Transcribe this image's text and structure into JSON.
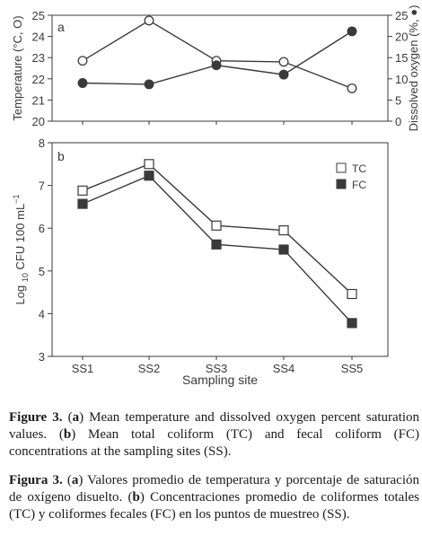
{
  "chart_data": [
    {
      "type": "line",
      "panel_label": "a",
      "categories": [
        "SS1",
        "SS2",
        "SS3",
        "SS4",
        "SS5"
      ],
      "ylabel": "Temperature (°C, O)",
      "y2label": "Dissolved oxygen (%, ●)",
      "ylim": [
        20,
        25
      ],
      "y2lim": [
        0,
        25
      ],
      "yticks": [
        "20",
        "21",
        "22",
        "23",
        "24",
        "25"
      ],
      "y2ticks": [
        "0",
        "5",
        "10",
        "15",
        "20",
        "25"
      ],
      "grid": false,
      "series": [
        {
          "marker": "open-circle",
          "axis": "left",
          "values": [
            22.85,
            24.75,
            22.85,
            22.8,
            21.55
          ]
        },
        {
          "marker": "filled-circle",
          "axis": "right",
          "values": [
            9.0,
            8.7,
            13.2,
            11.0,
            21.2
          ]
        }
      ]
    },
    {
      "type": "line",
      "panel_label": "b",
      "categories": [
        "SS1",
        "SS2",
        "SS3",
        "SS4",
        "SS5"
      ],
      "xlabel": "Sampling site",
      "ylabel": "Log10 CFU 100 mL−1",
      "ylim": [
        3,
        8
      ],
      "yticks": [
        "3",
        "4",
        "5",
        "6",
        "7",
        "8"
      ],
      "grid": false,
      "legend_position": "top-right",
      "series": [
        {
          "name": "TC",
          "marker": "open-square",
          "values": [
            6.88,
            7.5,
            6.06,
            5.95,
            4.46
          ]
        },
        {
          "name": "FC",
          "marker": "filled-square",
          "values": [
            6.57,
            7.23,
            5.62,
            5.5,
            3.78
          ]
        }
      ]
    }
  ],
  "captions": {
    "english": {
      "fig_label": "Figure 3.",
      "a_key": "a",
      "a_text": "Mean temperature and dissolved oxygen percent saturation values.",
      "b_key": "b",
      "b_text": "Mean total coliform (TC) and fecal coliform (FC) concentrations at the sampling sites (SS)."
    },
    "spanish": {
      "fig_label": "Figura 3.",
      "a_key": "a",
      "a_text": "Valores promedio de temperatura y porcentaje de saturación de oxígeno disuelto.",
      "b_key": "b",
      "b_text": "Concentraciones promedio de coliformes totales (TC) y coliformes fecales (FC) en los puntos de muestreo (SS)."
    }
  },
  "colors": {
    "line": "#3a3a3a",
    "axis": "#3a3a3a",
    "text": "#1a1a1a"
  }
}
